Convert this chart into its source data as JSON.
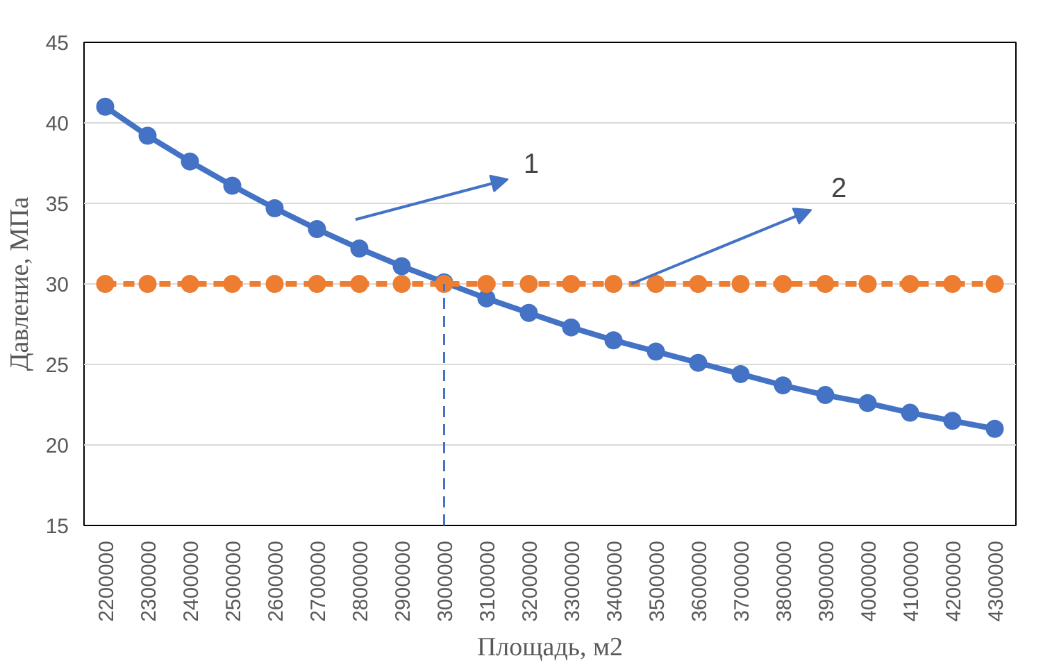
{
  "chart_data": {
    "type": "line",
    "xlabel": "Площадь, м2",
    "ylabel": "Давление, МПа",
    "categories": [
      "2200000",
      "2300000",
      "2400000",
      "2500000",
      "2600000",
      "2700000",
      "2800000",
      "2900000",
      "3000000",
      "3100000",
      "3200000",
      "3300000",
      "3400000",
      "3500000",
      "3600000",
      "3700000",
      "3800000",
      "3900000",
      "4000000",
      "4100000",
      "4200000",
      "4300000"
    ],
    "series": [
      {
        "color": "#4472c4",
        "line_style": "solid",
        "values": [
          41.0,
          39.2,
          37.6,
          36.1,
          34.7,
          33.4,
          32.2,
          31.1,
          30.1,
          29.1,
          28.2,
          27.3,
          26.5,
          25.8,
          25.1,
          24.4,
          23.7,
          23.1,
          22.6,
          22.0,
          21.5,
          21.0
        ]
      },
      {
        "color": "#ed7d31",
        "line_style": "dashed",
        "values": [
          30,
          30,
          30,
          30,
          30,
          30,
          30,
          30,
          30,
          30,
          30,
          30,
          30,
          30,
          30,
          30,
          30,
          30,
          30,
          30,
          30,
          30
        ]
      },
      {
        "color": "#4472c4",
        "line_style": "dashed",
        "marker": "none",
        "x": [
          "3000000",
          "3000000"
        ],
        "values": [
          15,
          30
        ]
      }
    ],
    "marker": "circle",
    "ylim": [
      15,
      45
    ],
    "yticks": [
      15,
      20,
      25,
      30,
      35,
      40,
      45
    ],
    "grid": "y",
    "annotations": [
      "1",
      "2"
    ]
  }
}
